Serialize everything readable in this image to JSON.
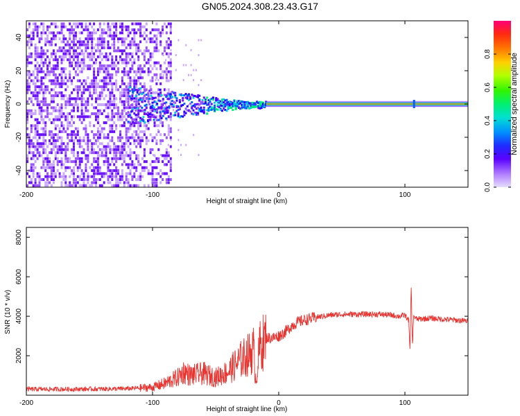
{
  "page": {
    "title": "GN05.2024.308.23.43.G17"
  },
  "colors": {
    "snr_line": "#e8332f",
    "background": "#ffffff",
    "colormap": [
      "#ece4ff",
      "#c9a6ff",
      "#9a55ff",
      "#6a11ff",
      "#2a00ff",
      "#0060ff",
      "#00d0e0",
      "#00f07a",
      "#3af400",
      "#d8ff00",
      "#ffa800",
      "#ff3a00",
      "#ff0066"
    ]
  },
  "chart_data": [
    {
      "type": "heatmap",
      "title": "GN05.2024.308.23.43.G17",
      "xlabel": "Height of straight line (km)",
      "ylabel": "Frequency (Hz)",
      "xlim": [
        -200,
        150
      ],
      "ylim": [
        -50,
        50
      ],
      "xticks": [
        -200,
        -100,
        0,
        100
      ],
      "yticks": [
        -40,
        -20,
        0,
        20,
        40
      ],
      "colorbar": {
        "label": "Normalized spectral amplitude",
        "range": [
          0,
          1
        ],
        "ticks": [
          "0.0",
          "0.2",
          "0.4",
          "0.6",
          "0.8"
        ]
      },
      "description_points": {
        "noise_region_x": [
          -200,
          -85
        ],
        "tone_frequency_hz": 0,
        "transition_x": [
          -85,
          -10
        ],
        "spike_x": 107
      }
    },
    {
      "type": "line",
      "xlabel": "Height of straight line (km)",
      "ylabel": "SNR (10 * v/v)",
      "xlim": [
        -200,
        150
      ],
      "ylim": [
        0,
        8500
      ],
      "xticks": [
        -200,
        -100,
        0,
        100
      ],
      "yticks": [
        2000,
        4000,
        6000,
        8000
      ],
      "series": [
        {
          "x": [
            -200,
            -150,
            -120,
            -100,
            -90,
            -80,
            -75,
            -70,
            -60,
            -50,
            -40,
            -30,
            -25,
            -20,
            -18,
            -15,
            -12,
            -10,
            -5,
            0,
            5,
            10,
            15,
            20,
            30,
            40,
            50,
            60,
            70,
            80,
            90,
            95,
            100,
            103,
            104,
            105,
            106,
            107,
            108,
            110,
            120,
            130,
            140,
            150
          ],
          "values": [
            300,
            310,
            330,
            400,
            600,
            900,
            1200,
            1000,
            1100,
            900,
            1200,
            1800,
            2000,
            2300,
            700,
            2500,
            2700,
            2900,
            2900,
            3000,
            3200,
            3500,
            3700,
            3800,
            3950,
            4050,
            4100,
            4100,
            4100,
            4100,
            4050,
            4000,
            4050,
            3800,
            2200,
            5500,
            2500,
            4100,
            3900,
            3850,
            3900,
            3850,
            3800,
            3750
          ]
        }
      ]
    }
  ]
}
